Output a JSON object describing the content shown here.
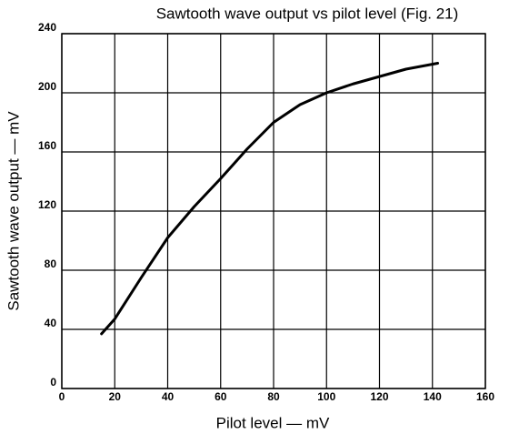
{
  "chart_data": {
    "type": "line",
    "title": "Sawtooth wave output vs pilot level (Fig. 21)",
    "xlabel": "Pilot level — mV",
    "ylabel": "Sawtooth wave output — mV",
    "x": [
      15,
      20,
      30,
      40,
      50,
      60,
      70,
      80,
      90,
      100,
      110,
      120,
      130,
      142
    ],
    "values": [
      37,
      47,
      75,
      102,
      123,
      142,
      162,
      180,
      192,
      200,
      206,
      211,
      216,
      220
    ],
    "color": "#000000",
    "xlim": [
      0,
      160
    ],
    "xticks": [
      0,
      20,
      40,
      60,
      80,
      100,
      120,
      140,
      160
    ],
    "ylim": [
      0,
      240
    ],
    "yticks": [
      0,
      40,
      80,
      120,
      160,
      200,
      240
    ],
    "grid": true
  }
}
